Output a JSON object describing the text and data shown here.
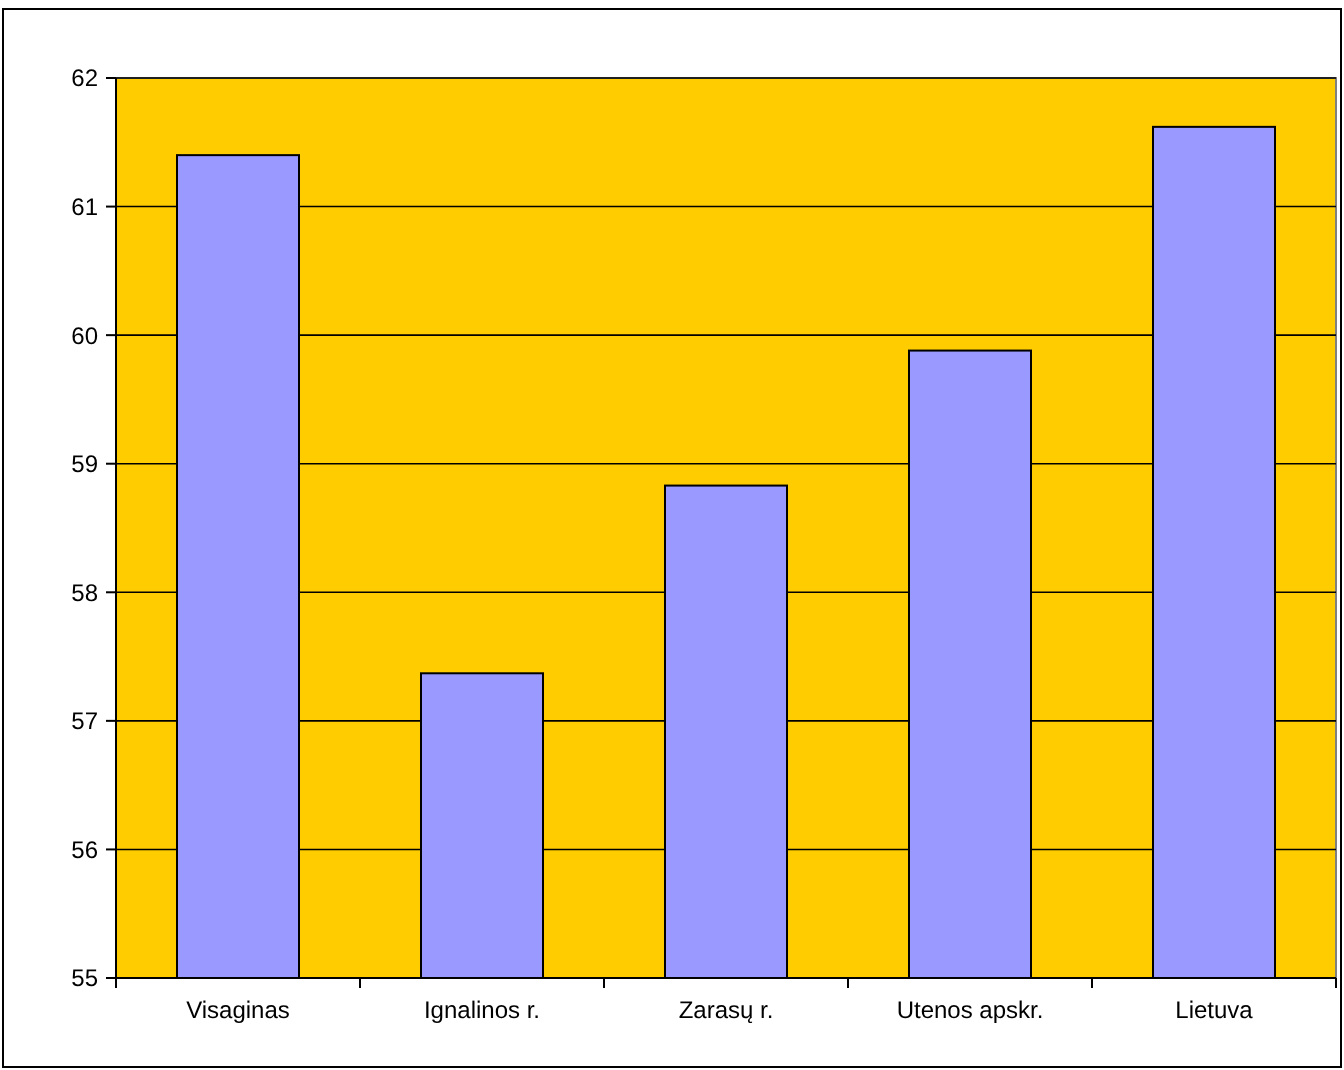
{
  "chart_data": {
    "type": "bar",
    "categories": [
      "Visaginas",
      "Ignalinos r.",
      "Zarasų r.",
      "Utenos apskr.",
      "Lietuva"
    ],
    "values": [
      61.4,
      57.37,
      58.83,
      59.88,
      61.62
    ],
    "color": "#9999ff",
    "ylim": [
      55,
      62
    ],
    "yticks": [
      55,
      56,
      57,
      58,
      59,
      60,
      61,
      62
    ],
    "grid": "y"
  }
}
